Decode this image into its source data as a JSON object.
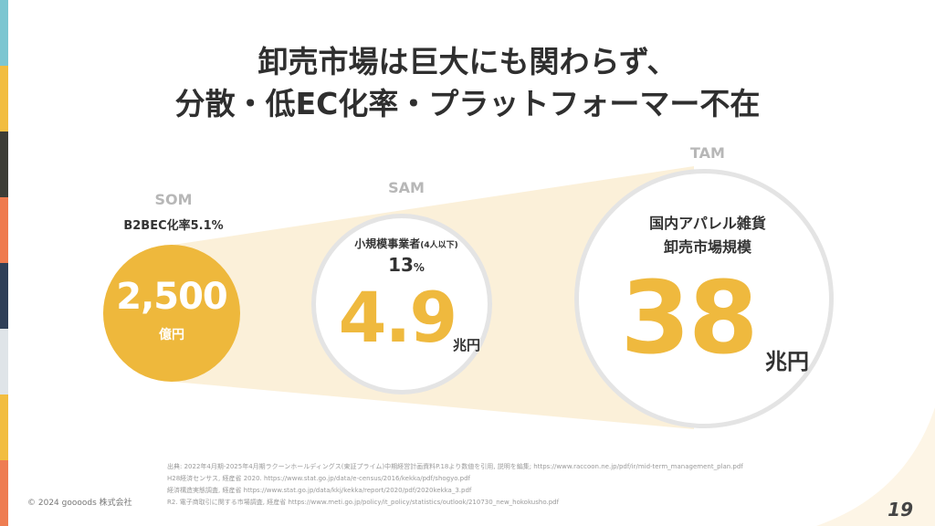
{
  "sidebar": {
    "stripe_colors": [
      "#7cc6d1",
      "#f2bd40",
      "#3d3d36",
      "#ef7b4e",
      "#2f3f57",
      "#dfe4e8",
      "#f2bd40",
      "#ee7d52"
    ]
  },
  "header": {
    "title_line1": "卸売市場は巨大にも関わらず、",
    "title_line2": "分散・低EC化率・プラットフォーマー不在"
  },
  "som": {
    "label": "SOM",
    "caption": "B2BEC化率5.1%",
    "value": "2,500",
    "unit": "億円"
  },
  "sam": {
    "label": "SAM",
    "caption": "小規模事業者",
    "caption_small": "(4人以下)",
    "percent_value": "13",
    "percent_sign": "%",
    "value": "4.9",
    "unit": "兆円"
  },
  "tam": {
    "label": "TAM",
    "caption_line1": "国内アパレル雑貨",
    "caption_line2": "卸売市場規模",
    "value": "38",
    "unit": "兆円"
  },
  "footer": {
    "notes": [
      "出典: 2022年4月期-2025年4月期ラクーンホールディングス(東証プライム)中期経営計画資料P.18より数値を引用, 説明を編集; https://www.raccoon.ne.jp/pdf/ir/mid-term_management_plan.pdf",
      "H28経済センサス, 経産省 2020. https://www.stat.go.jp/data/e-census/2016/kekka/pdf/shogyo.pdf",
      "経済構造実態調査, 経産省 https://www.stat.go.jp/data/kkj/kekka/report/2020/pdf/2020kekka_3.pdf",
      "R2. 電子商取引に関する市場調査, 経産省 https://www.meti.go.jp/policy/it_policy/statistics/outlook/210730_new_hokokusho.pdf"
    ],
    "copyright": "© 2024 goooods 株式会社",
    "page_number": "19"
  },
  "colors": {
    "accent": "#efb93e",
    "beam": "#fbf0d9",
    "circle_border": "#e4e4e4",
    "label_gray": "#b7b7b7"
  }
}
